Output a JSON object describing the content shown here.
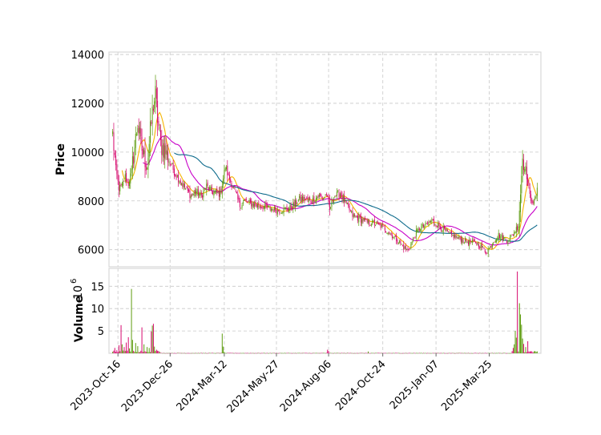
{
  "chart_data": {
    "type": "candlestick",
    "style": "financial OHLC candles with moving averages and volume sub-panel",
    "colors": {
      "up": "#5a9a0a",
      "down": "#d6046b",
      "ma_short": "#f5b400",
      "ma_mid": "#c800c8",
      "ma_long": "#0e6b8c",
      "grid": "#c8c8c8",
      "frame": "#d8d8d8"
    },
    "price_panel": {
      "ylabel": "Price",
      "yticks": [
        6000,
        8000,
        10000,
        12000,
        14000
      ],
      "ylim": [
        5300,
        14100
      ]
    },
    "volume_panel": {
      "ylabel": "Volume",
      "multiplier_label": "10",
      "multiplier_exp": "6",
      "yticks": [
        5,
        10,
        15
      ],
      "ylim": [
        0,
        19
      ]
    },
    "x_ticks": [
      "2023-Oct-16",
      "2023-Dec-26",
      "2024-Mar-12",
      "2024-May-27",
      "2024-Aug-06",
      "2024-Oct-24",
      "2025-Jan-07",
      "2025-Mar-25"
    ],
    "x_tick_index": [
      5,
      55,
      107,
      157,
      207,
      259,
      310,
      361
    ],
    "n_candles": 408,
    "close_anchors": [
      [
        0,
        10700
      ],
      [
        3,
        9300
      ],
      [
        6,
        8500
      ],
      [
        9,
        8600
      ],
      [
        12,
        9000
      ],
      [
        15,
        8700
      ],
      [
        18,
        9200
      ],
      [
        21,
        10200
      ],
      [
        24,
        11200
      ],
      [
        27,
        10300
      ],
      [
        30,
        9800
      ],
      [
        33,
        9400
      ],
      [
        36,
        10800
      ],
      [
        39,
        12000
      ],
      [
        41,
        12300
      ],
      [
        43,
        11400
      ],
      [
        46,
        10300
      ],
      [
        50,
        10100
      ],
      [
        55,
        9600
      ],
      [
        60,
        9100
      ],
      [
        65,
        8800
      ],
      [
        70,
        8500
      ],
      [
        75,
        8200
      ],
      [
        80,
        8400
      ],
      [
        85,
        8200
      ],
      [
        90,
        8600
      ],
      [
        95,
        8400
      ],
      [
        100,
        8300
      ],
      [
        103,
        8300
      ],
      [
        105,
        8700
      ],
      [
        108,
        9400
      ],
      [
        111,
        9000
      ],
      [
        114,
        8700
      ],
      [
        118,
        8300
      ],
      [
        122,
        7800
      ],
      [
        126,
        8000
      ],
      [
        132,
        7900
      ],
      [
        140,
        7800
      ],
      [
        150,
        7700
      ],
      [
        160,
        7600
      ],
      [
        170,
        7700
      ],
      [
        180,
        8100
      ],
      [
        190,
        8000
      ],
      [
        198,
        8200
      ],
      [
        202,
        8100
      ],
      [
        205,
        8300
      ],
      [
        208,
        7600
      ],
      [
        212,
        8200
      ],
      [
        218,
        8300
      ],
      [
        222,
        8000
      ],
      [
        226,
        7700
      ],
      [
        230,
        7400
      ],
      [
        235,
        7300
      ],
      [
        240,
        7200
      ],
      [
        245,
        7100
      ],
      [
        250,
        7100
      ],
      [
        255,
        7000
      ],
      [
        260,
        6900
      ],
      [
        265,
        6700
      ],
      [
        270,
        6500
      ],
      [
        275,
        6300
      ],
      [
        279,
        6100
      ],
      [
        283,
        5950
      ],
      [
        287,
        6300
      ],
      [
        291,
        6700
      ],
      [
        295,
        6900
      ],
      [
        300,
        7000
      ],
      [
        306,
        7200
      ],
      [
        312,
        7000
      ],
      [
        318,
        6800
      ],
      [
        324,
        6600
      ],
      [
        330,
        6500
      ],
      [
        336,
        6400
      ],
      [
        342,
        6300
      ],
      [
        348,
        6300
      ],
      [
        354,
        6100
      ],
      [
        358,
        5900
      ],
      [
        362,
        6100
      ],
      [
        366,
        6400
      ],
      [
        370,
        6600
      ],
      [
        374,
        6500
      ],
      [
        378,
        6400
      ],
      [
        382,
        6500
      ],
      [
        386,
        6800
      ],
      [
        389,
        7000
      ],
      [
        391,
        8300
      ],
      [
        393,
        9800
      ],
      [
        396,
        9300
      ],
      [
        400,
        8200
      ],
      [
        404,
        7900
      ],
      [
        407,
        8400
      ]
    ],
    "volume_spikes": [
      [
        2,
        1.2
      ],
      [
        4,
        0.7
      ],
      [
        6,
        1.8
      ],
      [
        8,
        6.3
      ],
      [
        9,
        2.0
      ],
      [
        11,
        1.4
      ],
      [
        13,
        2.4
      ],
      [
        15,
        3.6
      ],
      [
        16,
        1.1
      ],
      [
        18,
        14.4
      ],
      [
        19,
        3.0
      ],
      [
        22,
        2.3
      ],
      [
        24,
        1.6
      ],
      [
        28,
        5.8
      ],
      [
        30,
        2.0
      ],
      [
        33,
        1.4
      ],
      [
        35,
        1.2
      ],
      [
        37,
        4.9
      ],
      [
        38,
        6.2
      ],
      [
        39,
        6.6
      ],
      [
        40,
        1.5
      ],
      [
        42,
        0.8
      ],
      [
        44,
        0.5
      ],
      [
        105,
        4.4
      ],
      [
        106,
        1.5
      ],
      [
        107,
        0.3
      ],
      [
        206,
        0.8
      ],
      [
        207,
        0.5
      ],
      [
        245,
        0.4
      ],
      [
        384,
        1.2
      ],
      [
        385,
        2.0
      ],
      [
        386,
        5.0
      ],
      [
        387,
        3.5
      ],
      [
        388,
        18.3
      ],
      [
        390,
        11.2
      ],
      [
        391,
        8.7
      ],
      [
        392,
        6.4
      ],
      [
        393,
        3.3
      ],
      [
        394,
        2.1
      ],
      [
        396,
        1.4
      ],
      [
        398,
        2.7
      ]
    ]
  }
}
